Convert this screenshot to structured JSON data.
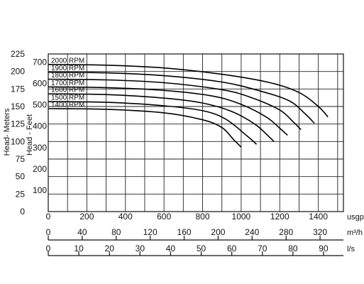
{
  "chart_data": {
    "type": "line",
    "title": "",
    "ylabels": {
      "meters": "Head- Meters",
      "feet": "Head - Feet"
    },
    "y_meters": {
      "ticks": [
        0,
        25,
        50,
        75,
        100,
        125,
        150,
        175,
        200,
        225
      ],
      "range": [
        0,
        225
      ]
    },
    "y_feet": {
      "ticks": [
        0,
        100,
        200,
        300,
        400,
        500,
        600,
        700
      ],
      "range": [
        0,
        738
      ]
    },
    "x_axes": [
      {
        "unit": "usgpm",
        "ticks": [
          0,
          200,
          400,
          600,
          800,
          1000,
          1200,
          1400
        ],
        "range": [
          0,
          1530
        ]
      },
      {
        "unit": "m³/h",
        "ticks": [
          0,
          40,
          80,
          120,
          160,
          200,
          240,
          280,
          320
        ],
        "range": [
          0,
          347.5
        ]
      },
      {
        "unit": "l/s",
        "ticks": [
          0,
          10,
          20,
          30,
          40,
          50,
          60,
          70,
          80,
          90
        ],
        "range": [
          0,
          96.5
        ]
      }
    ],
    "series": [
      {
        "name": "2000 RPM",
        "x": [
          0,
          300,
          600,
          900,
          1150,
          1300,
          1400,
          1450
        ],
        "y": [
          210,
          209,
          205,
          196,
          184,
          170,
          150,
          135
        ]
      },
      {
        "name": "1900 RPM",
        "x": [
          0,
          300,
          600,
          900,
          1100,
          1250,
          1330,
          1380
        ],
        "y": [
          199,
          198,
          194,
          185,
          172,
          158,
          140,
          126
        ]
      },
      {
        "name": "1800 RPM",
        "x": [
          0,
          300,
          600,
          900,
          1050,
          1200,
          1270,
          1310
        ],
        "y": [
          189,
          188,
          184,
          174,
          163,
          145,
          128,
          117
        ]
      },
      {
        "name": "1700 RPM",
        "x": [
          0,
          300,
          600,
          850,
          1000,
          1130,
          1200,
          1240
        ],
        "y": [
          178,
          177,
          173,
          165,
          153,
          135,
          119,
          109
        ]
      },
      {
        "name": "1600 RPM",
        "x": [
          0,
          300,
          600,
          800,
          950,
          1070,
          1140,
          1170
        ],
        "y": [
          168,
          167,
          162,
          155,
          143,
          125,
          108,
          100
        ]
      },
      {
        "name": "1500 RPM",
        "x": [
          0,
          300,
          600,
          800,
          920,
          1030,
          1080
        ],
        "y": [
          157,
          156,
          151,
          144,
          132,
          108,
          96
        ]
      },
      {
        "name": "1400 RPM",
        "x": [
          0,
          300,
          600,
          800,
          900,
          960,
          1000
        ],
        "y": [
          147,
          146,
          141,
          131,
          120,
          103,
          92
        ]
      }
    ],
    "grid": true
  }
}
